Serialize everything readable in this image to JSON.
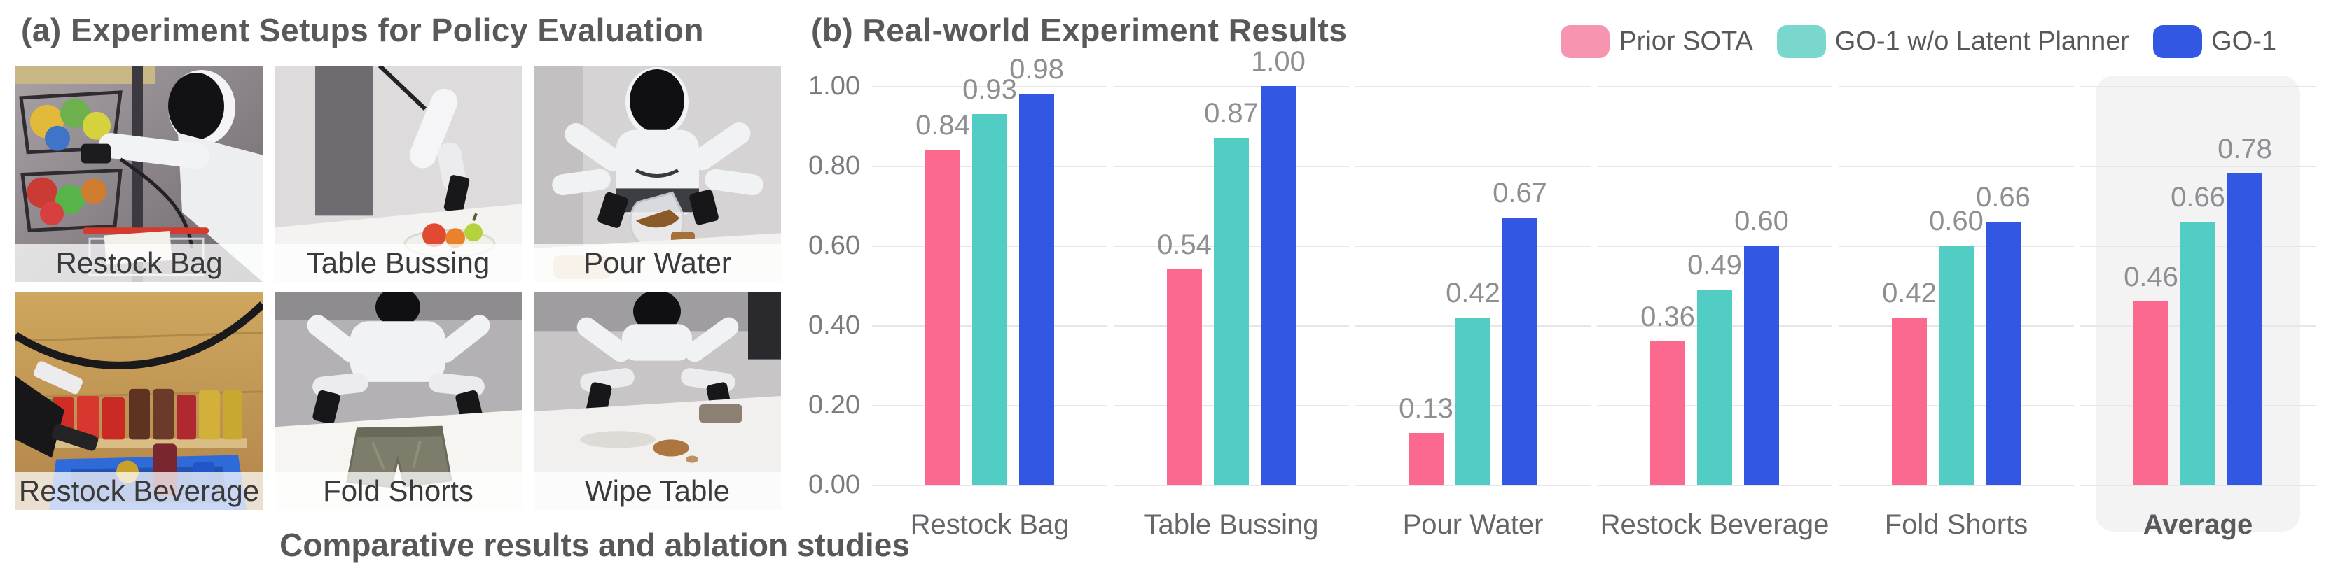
{
  "panel_a": {
    "title": "(a) Experiment Setups for Policy Evaluation",
    "setups": [
      {
        "label": "Restock Bag"
      },
      {
        "label": "Table Bussing"
      },
      {
        "label": "Pour Water"
      },
      {
        "label": "Restock Beverage"
      },
      {
        "label": "Fold Shorts"
      },
      {
        "label": "Wipe Table"
      }
    ]
  },
  "panel_b": {
    "title": "(b) Real-world Experiment Results",
    "caption": "Comparative results and ablation studies",
    "legend": [
      {
        "label": "Prior SOTA",
        "color": "#f795b0"
      },
      {
        "label": "GO-1 w/o Latent Planner",
        "color": "#79d7cd"
      },
      {
        "label": "GO-1",
        "color": "#3257e3"
      }
    ]
  },
  "chart_data": {
    "type": "bar",
    "title": "(b) Real-world Experiment Results",
    "categories": [
      "Restock Bag",
      "Table Bussing",
      "Pour Water",
      "Restock Beverage",
      "Fold Shorts",
      "Average"
    ],
    "series": [
      {
        "name": "Prior SOTA",
        "color": "#fb6a8e",
        "values": [
          0.84,
          0.54,
          0.13,
          0.36,
          0.42,
          0.46
        ]
      },
      {
        "name": "GO-1 w/o Latent Planner",
        "color": "#52cdc3",
        "values": [
          0.93,
          0.87,
          0.42,
          0.49,
          0.6,
          0.66
        ]
      },
      {
        "name": "GO-1",
        "color": "#3257e3",
        "values": [
          0.98,
          1.0,
          0.67,
          0.6,
          0.66,
          0.78
        ]
      }
    ],
    "xlabel": "",
    "ylabel": "",
    "ylim": [
      0,
      1.0
    ],
    "yticks": [
      "1.00",
      "0.80",
      "0.60",
      "0.40",
      "0.20",
      "0.00"
    ],
    "grid": true,
    "value_label_format": "2-decimals",
    "legend_position": "top-right",
    "highlight_category": "Average"
  }
}
